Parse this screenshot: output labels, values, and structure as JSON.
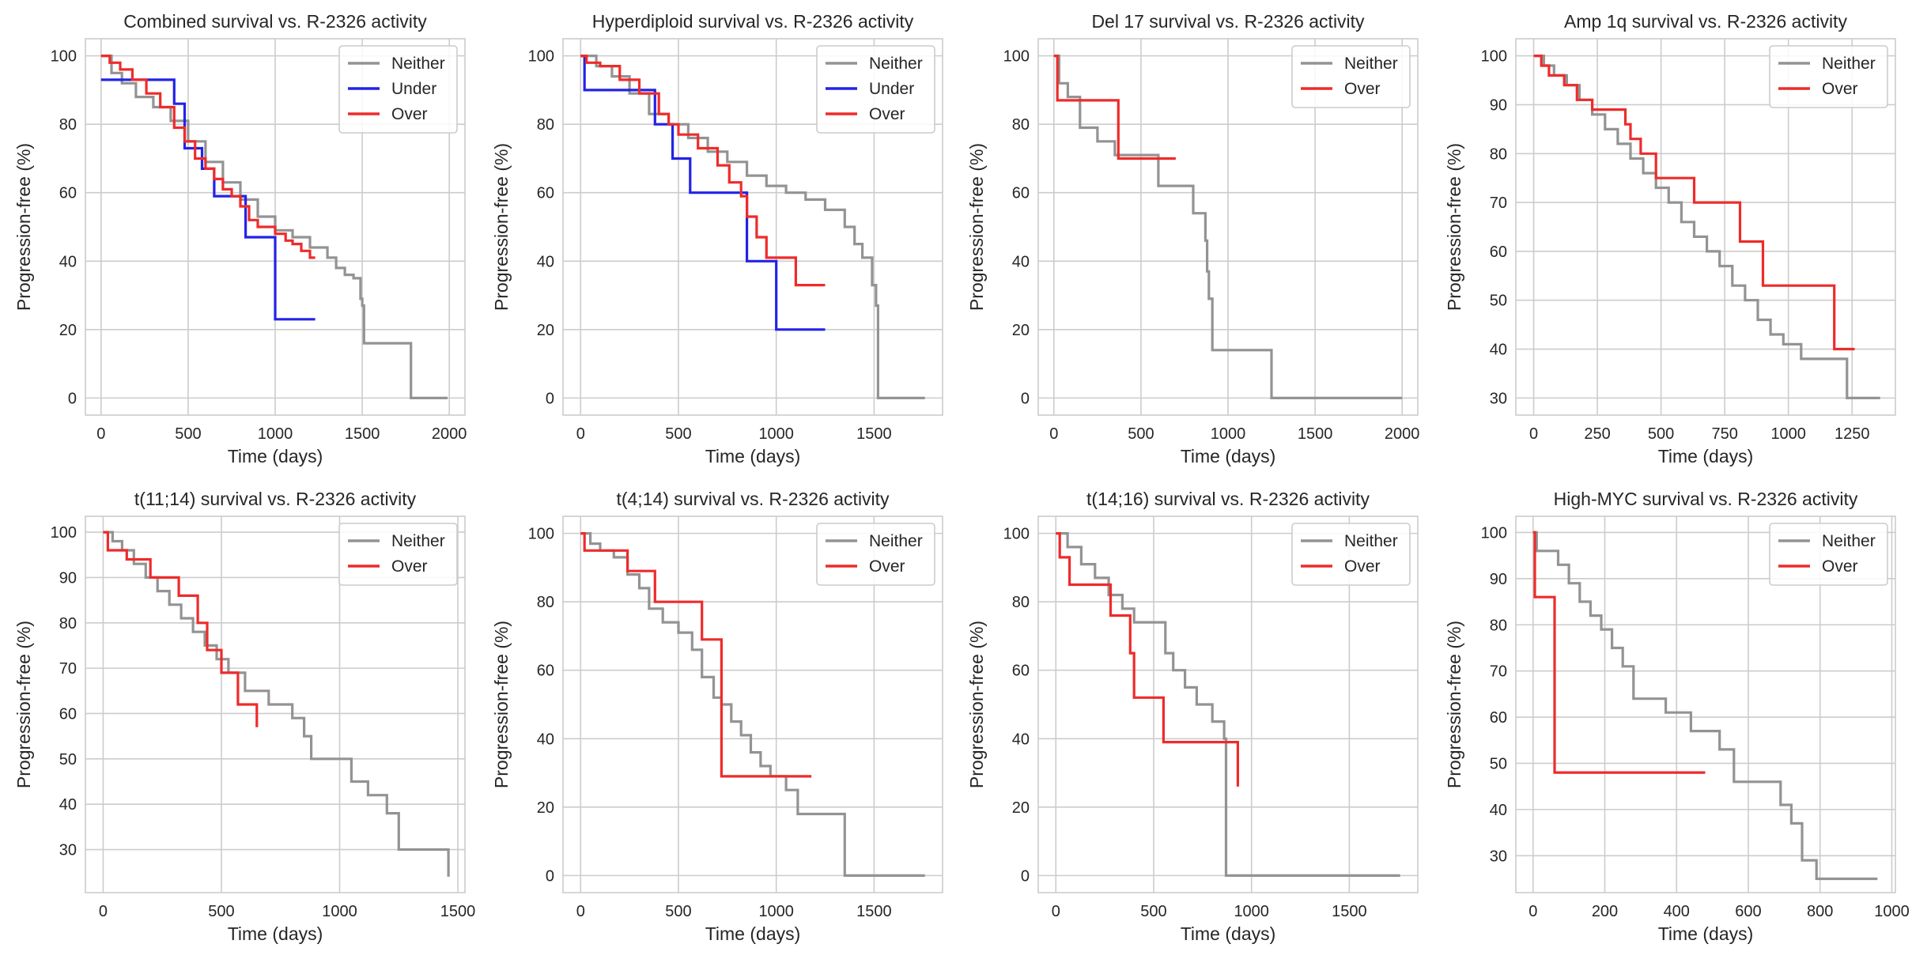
{
  "colors": {
    "Neither": "#939393",
    "Under": "#2323e6",
    "Over": "#ee2b2b"
  },
  "chart_data": [
    {
      "type": "line",
      "title": "Combined survival vs. R-2326 activity",
      "xlabel": "Time (days)",
      "ylabel": "Progression-free (%)",
      "xlim": [
        -90,
        2090
      ],
      "ylim": [
        -5,
        105
      ],
      "xticks": [
        0,
        500,
        1000,
        1500,
        2000
      ],
      "yticks": [
        0,
        20,
        40,
        60,
        80,
        100
      ],
      "legend": "top-right",
      "series": [
        {
          "name": "Neither",
          "x": [
            0,
            60,
            120,
            200,
            300,
            400,
            500,
            600,
            700,
            800,
            900,
            1000,
            1100,
            1200,
            1300,
            1350,
            1400,
            1450,
            1490,
            1500,
            1510,
            1760,
            1780,
            1990
          ],
          "y": [
            100,
            95,
            92,
            88,
            85,
            81,
            75,
            69,
            63,
            58,
            53,
            49,
            47,
            44,
            41,
            38,
            36,
            35,
            29,
            27,
            16,
            16,
            0,
            0
          ]
        },
        {
          "name": "Under",
          "x": [
            0,
            370,
            420,
            480,
            580,
            650,
            830,
            1000,
            1230
          ],
          "y": [
            93,
            93,
            86,
            73,
            67,
            59,
            47,
            23,
            23
          ]
        },
        {
          "name": "Over",
          "x": [
            0,
            50,
            110,
            180,
            260,
            340,
            420,
            480,
            540,
            600,
            650,
            700,
            750,
            800,
            850,
            900,
            950,
            1000,
            1060,
            1100,
            1150,
            1200,
            1230
          ],
          "y": [
            100,
            98,
            96,
            93,
            89,
            85,
            79,
            75,
            70,
            67,
            64,
            61,
            59,
            56,
            52,
            50,
            50,
            48,
            46,
            45,
            43,
            41,
            41
          ]
        }
      ]
    },
    {
      "type": "line",
      "title": "Hyperdiploid survival vs. R-2326 activity",
      "xlabel": "Time (days)",
      "ylabel": "Progression-free (%)",
      "xlim": [
        -90,
        1850
      ],
      "ylim": [
        -5,
        105
      ],
      "xticks": [
        0,
        500,
        1000,
        1500
      ],
      "yticks": [
        0,
        20,
        40,
        60,
        80,
        100
      ],
      "legend": "top-right",
      "series": [
        {
          "name": "Neither",
          "x": [
            0,
            80,
            160,
            250,
            350,
            450,
            550,
            650,
            750,
            850,
            950,
            1050,
            1150,
            1250,
            1350,
            1400,
            1440,
            1490,
            1510,
            1520,
            1760
          ],
          "y": [
            100,
            97,
            94,
            89,
            83,
            80,
            76,
            72,
            69,
            65,
            62,
            60,
            58,
            55,
            50,
            45,
            41,
            33,
            27,
            0,
            0
          ]
        },
        {
          "name": "Under",
          "x": [
            0,
            20,
            360,
            380,
            470,
            560,
            830,
            850,
            1000,
            1250
          ],
          "y": [
            100,
            90,
            90,
            80,
            70,
            60,
            60,
            40,
            20,
            20
          ]
        },
        {
          "name": "Over",
          "x": [
            0,
            30,
            100,
            200,
            300,
            400,
            450,
            500,
            600,
            700,
            760,
            820,
            850,
            900,
            950,
            1100,
            1250
          ],
          "y": [
            100,
            98,
            97,
            93,
            89,
            83,
            80,
            77,
            73,
            68,
            63,
            59,
            53,
            47,
            41,
            33,
            33
          ]
        }
      ]
    },
    {
      "type": "line",
      "title": "Del 17 survival vs. R-2326 activity",
      "xlabel": "Time (days)",
      "ylabel": "Progression-free (%)",
      "xlim": [
        -90,
        2090
      ],
      "ylim": [
        -5,
        105
      ],
      "xticks": [
        0,
        500,
        1000,
        1500,
        2000
      ],
      "yticks": [
        0,
        20,
        40,
        60,
        80,
        100
      ],
      "legend": "top-right",
      "series": [
        {
          "name": "Neither",
          "x": [
            0,
            30,
            80,
            150,
            250,
            350,
            500,
            600,
            700,
            800,
            870,
            880,
            890,
            910,
            1250,
            2000
          ],
          "y": [
            100,
            92,
            88,
            79,
            75,
            71,
            71,
            62,
            62,
            54,
            46,
            37,
            29,
            14,
            0,
            0
          ]
        },
        {
          "name": "Over",
          "x": [
            0,
            20,
            370,
            700
          ],
          "y": [
            100,
            87,
            70,
            70
          ]
        }
      ]
    },
    {
      "type": "line",
      "title": "Amp 1q survival vs. R-2326 activity",
      "xlabel": "Time (days)",
      "ylabel": "Progression-free (%)",
      "xlim": [
        -70,
        1420
      ],
      "ylim": [
        26.5,
        103.5
      ],
      "xticks": [
        0,
        250,
        500,
        750,
        1000,
        1250
      ],
      "yticks": [
        30,
        40,
        50,
        60,
        70,
        80,
        90,
        100
      ],
      "legend": "top-right",
      "series": [
        {
          "name": "Neither",
          "x": [
            0,
            40,
            80,
            130,
            180,
            230,
            280,
            330,
            380,
            430,
            480,
            530,
            580,
            630,
            680,
            730,
            780,
            830,
            880,
            930,
            980,
            1050,
            1120,
            1230,
            1360
          ],
          "y": [
            100,
            98,
            96,
            94,
            91,
            88,
            85,
            82,
            79,
            76,
            73,
            70,
            66,
            63,
            60,
            57,
            53,
            50,
            46,
            43,
            41,
            38,
            38,
            30,
            30
          ]
        },
        {
          "name": "Over",
          "x": [
            0,
            30,
            60,
            120,
            170,
            230,
            300,
            360,
            380,
            420,
            480,
            630,
            810,
            900,
            1180,
            1260
          ],
          "y": [
            100,
            98,
            96,
            94,
            91,
            89,
            89,
            86,
            83,
            80,
            75,
            70,
            62,
            53,
            40,
            40
          ]
        }
      ]
    },
    {
      "type": "line",
      "title": "t(11;14) survival vs. R-2326 activity",
      "xlabel": "Time (days)",
      "ylabel": "Progression-free (%)",
      "xlim": [
        -75,
        1530
      ],
      "ylim": [
        20.5,
        103.5
      ],
      "xticks": [
        0,
        500,
        1000,
        1500
      ],
      "yticks": [
        30,
        40,
        50,
        60,
        70,
        80,
        90,
        100
      ],
      "legend": "top-right",
      "series": [
        {
          "name": "Neither",
          "x": [
            0,
            40,
            80,
            130,
            180,
            230,
            280,
            330,
            380,
            430,
            480,
            530,
            600,
            700,
            800,
            850,
            880,
            1050,
            1120,
            1200,
            1250,
            1460
          ],
          "y": [
            100,
            98,
            96,
            93,
            90,
            87,
            84,
            81,
            78,
            75,
            72,
            69,
            65,
            62,
            59,
            55,
            50,
            45,
            42,
            38,
            30,
            24
          ]
        },
        {
          "name": "Over",
          "x": [
            0,
            20,
            100,
            200,
            320,
            400,
            440,
            500,
            570,
            650
          ],
          "y": [
            100,
            96,
            94,
            90,
            86,
            80,
            74,
            69,
            62,
            57
          ]
        }
      ]
    },
    {
      "type": "line",
      "title": "t(4;14) survival vs. R-2326 activity",
      "xlabel": "Time (days)",
      "ylabel": "Progression-free (%)",
      "xlim": [
        -90,
        1850
      ],
      "ylim": [
        -5,
        105
      ],
      "xticks": [
        0,
        500,
        1000,
        1500
      ],
      "yticks": [
        0,
        20,
        40,
        60,
        80,
        100
      ],
      "legend": "top-right",
      "series": [
        {
          "name": "Neither",
          "x": [
            0,
            50,
            100,
            170,
            240,
            300,
            350,
            420,
            500,
            570,
            620,
            680,
            720,
            770,
            820,
            870,
            920,
            970,
            1050,
            1110,
            1350,
            1760
          ],
          "y": [
            100,
            97,
            95,
            93,
            88,
            84,
            78,
            74,
            71,
            66,
            58,
            52,
            50,
            45,
            41,
            36,
            32,
            29,
            25,
            18,
            0,
            0
          ]
        },
        {
          "name": "Over",
          "x": [
            0,
            20,
            240,
            380,
            620,
            720,
            1180
          ],
          "y": [
            100,
            95,
            89,
            80,
            69,
            29,
            29
          ]
        }
      ]
    },
    {
      "type": "line",
      "title": "t(14;16) survival vs. R-2326 activity",
      "xlabel": "Time (days)",
      "ylabel": "Progression-free (%)",
      "xlim": [
        -90,
        1850
      ],
      "ylim": [
        -5,
        105
      ],
      "xticks": [
        0,
        500,
        1000,
        1500
      ],
      "yticks": [
        0,
        20,
        40,
        60,
        80,
        100
      ],
      "legend": "top-right",
      "series": [
        {
          "name": "Neither",
          "x": [
            0,
            60,
            130,
            200,
            270,
            340,
            400,
            500,
            560,
            600,
            660,
            720,
            800,
            860,
            870,
            1760
          ],
          "y": [
            100,
            96,
            91,
            87,
            82,
            78,
            74,
            74,
            65,
            60,
            55,
            50,
            45,
            40,
            0,
            0
          ]
        },
        {
          "name": "Over",
          "x": [
            0,
            20,
            70,
            280,
            380,
            400,
            550,
            920,
            930
          ],
          "y": [
            100,
            93,
            85,
            76,
            65,
            52,
            39,
            39,
            26
          ]
        }
      ]
    },
    {
      "type": "line",
      "title": "High-MYC survival vs. R-2326 activity",
      "xlabel": "Time (days)",
      "ylabel": "Progression-free (%)",
      "xlim": [
        -48,
        1010
      ],
      "ylim": [
        22,
        103.5
      ],
      "xticks": [
        0,
        200,
        400,
        600,
        800,
        1000
      ],
      "yticks": [
        30,
        40,
        50,
        60,
        70,
        80,
        90,
        100
      ],
      "legend": "top-right",
      "series": [
        {
          "name": "Neither",
          "x": [
            0,
            10,
            70,
            100,
            130,
            160,
            190,
            220,
            250,
            280,
            370,
            440,
            520,
            560,
            620,
            690,
            720,
            750,
            790,
            960
          ],
          "y": [
            100,
            96,
            93,
            89,
            85,
            82,
            79,
            75,
            71,
            64,
            61,
            57,
            53,
            46,
            46,
            41,
            37,
            29,
            25,
            25
          ]
        },
        {
          "name": "Over",
          "x": [
            0,
            5,
            60,
            480
          ],
          "y": [
            100,
            86,
            48,
            48
          ]
        }
      ]
    }
  ]
}
